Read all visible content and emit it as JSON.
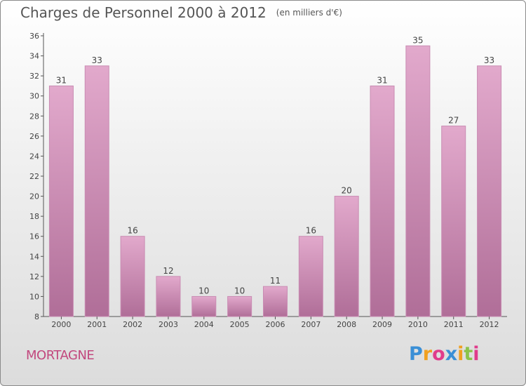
{
  "title": "Charges de Personnel 2000 à 2012",
  "subtitle": "(en milliers d'€)",
  "town": "MORTAGNE",
  "logo": {
    "letters": [
      "P",
      "r",
      "o",
      "x",
      "i",
      "t",
      "i"
    ],
    "colors": [
      "#3a8fd6",
      "#f0a020",
      "#e03c8c",
      "#3a8fd6",
      "#f0a020",
      "#8bc34a",
      "#e03c8c"
    ]
  },
  "colors": {
    "bar_top": "#e2a9cc",
    "bar_bottom": "#b06e98",
    "bar_edge": "#c98cb3",
    "title": "#555555",
    "town": "#c2487e"
  },
  "chart_data": {
    "type": "bar",
    "title": "Charges de Personnel 2000 à 2012",
    "subtitle": "(en milliers d'€)",
    "categories": [
      "2000",
      "2001",
      "2002",
      "2003",
      "2004",
      "2005",
      "2006",
      "2007",
      "2008",
      "2009",
      "2010",
      "2011",
      "2012"
    ],
    "values": [
      31,
      33,
      16,
      12,
      10,
      10,
      11,
      16,
      20,
      31,
      35,
      27,
      33
    ],
    "ylim": [
      8,
      36
    ],
    "yticks": [
      8,
      10,
      12,
      14,
      16,
      18,
      20,
      22,
      24,
      26,
      28,
      30,
      32,
      34,
      36
    ],
    "xlabel": "",
    "ylabel": "",
    "grid": false,
    "data_labels": true
  }
}
